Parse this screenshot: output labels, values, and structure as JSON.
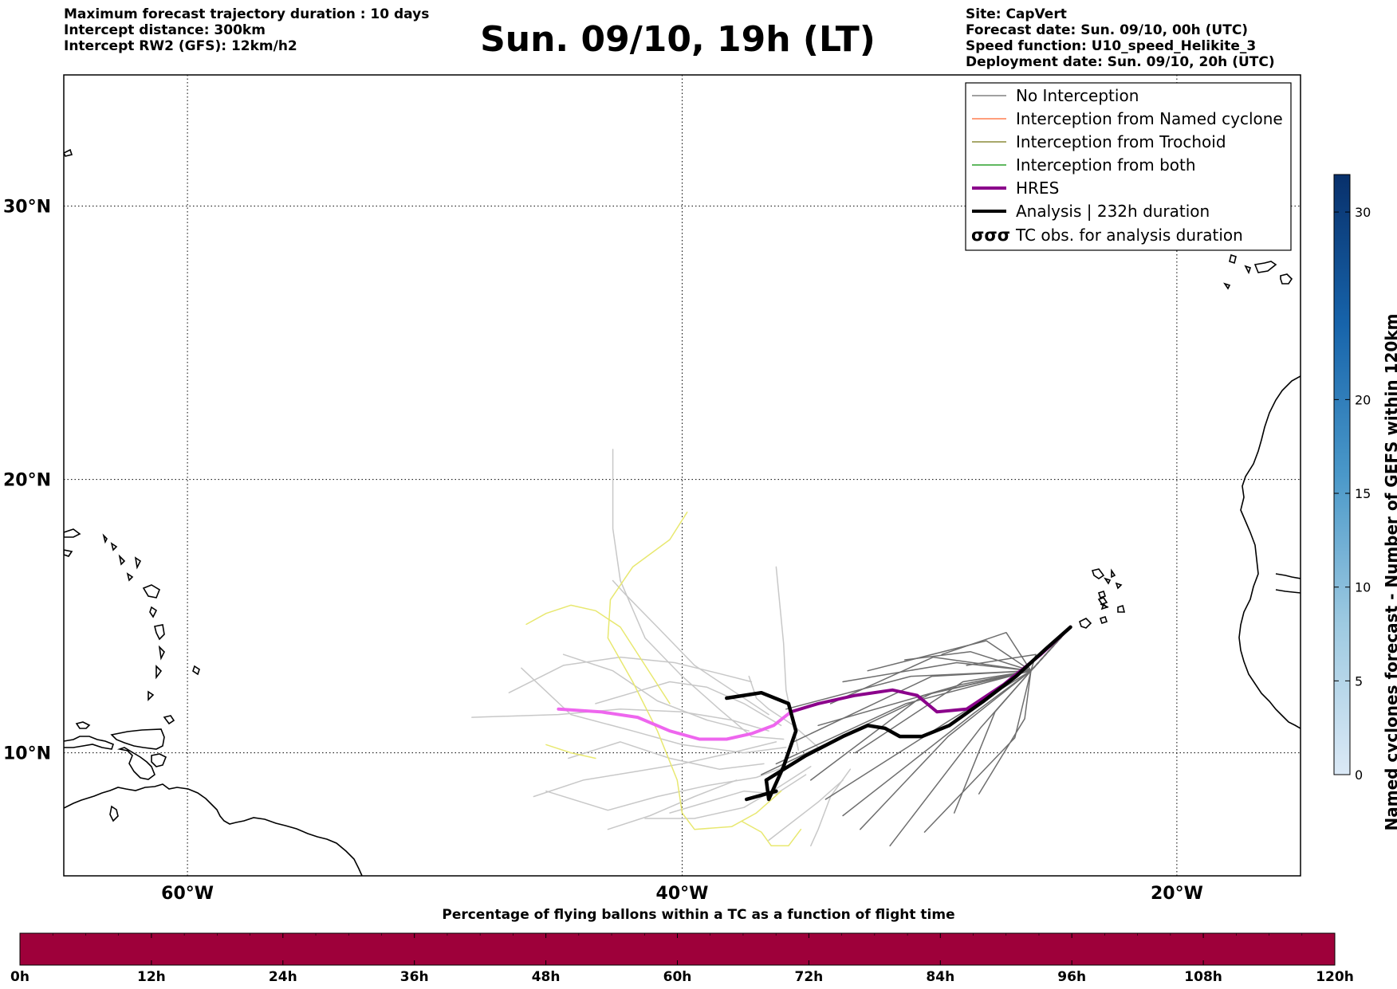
{
  "header_left": [
    "Maximum forecast trajectory duration : 10 days",
    "Intercept distance: 300km",
    "Intercept RW2 (GFS):  12km/h2"
  ],
  "header_right": [
    "Site: CapVert",
    "Forecast date: Sun. 09/10, 00h (UTC)",
    "Speed function: U10_speed_Helikite_3",
    "Deployment date: Sun. 09/10, 20h (UTC)"
  ],
  "title": "Sun. 09/10, 19h (LT)",
  "map": {
    "lon_range": [
      -65,
      -15
    ],
    "lat_range": [
      5.5,
      34.8
    ],
    "x_ticks": [
      {
        "lon": -60,
        "label": "60°W"
      },
      {
        "lon": -40,
        "label": "40°W"
      },
      {
        "lon": -20,
        "label": "20°W"
      }
    ],
    "y_ticks": [
      {
        "lat": 30,
        "label": "30°N"
      },
      {
        "lat": 20,
        "label": "20°N"
      },
      {
        "lat": 10,
        "label": "10°N"
      }
    ],
    "grid": true,
    "colors": {
      "no_interception": "#6e6e6e",
      "no_interception_light": "#c8c8c8",
      "named_cyclone": "#ff7f50",
      "trochoid": "#8b8b3a",
      "both": "#2ca02c",
      "hres": "#8b008b",
      "hres_light": "#ee66ee",
      "analysis": "#000000",
      "yellow_members": "#e8e870"
    }
  },
  "legend": {
    "placement": "top-right",
    "items": [
      {
        "label": "No Interception",
        "icon": "thin-gray-line"
      },
      {
        "label": "Interception from Named cyclone",
        "icon": "thin-orange-line"
      },
      {
        "label": "Interception from Trochoid",
        "icon": "thin-olive-line"
      },
      {
        "label": "Interception from both",
        "icon": "thin-green-line"
      },
      {
        "label": "HRES",
        "icon": "thick-purple-line"
      },
      {
        "label": "Analysis | 232h duration",
        "icon": "thick-black-line"
      },
      {
        "label": "TC obs. for analysis duration",
        "icon": "tc-symbols",
        "symbols": "σσσ"
      }
    ]
  },
  "colorbar_right": {
    "title": "Named cyclones forecast - Number of GEFS within 120km",
    "min": 0,
    "max": 32,
    "ticks": [
      "0",
      "5",
      "10",
      "15",
      "20",
      "30"
    ],
    "colormap": "Blues"
  },
  "colorbar_bottom": {
    "title": "Percentage of flying ballons within a TC as a function of flight time",
    "ticks": [
      "0h",
      "12h",
      "24h",
      "36h",
      "48h",
      "60h",
      "72h",
      "84h",
      "96h",
      "108h",
      "120h"
    ],
    "fill_color": "#9e003a"
  },
  "chart_data": {
    "type": "line",
    "hres": [
      [
        -24.3,
        14.6
      ],
      [
        -25.5,
        13.6
      ],
      [
        -27,
        12.5
      ],
      [
        -28.5,
        11.6
      ],
      [
        -29.7,
        11.5
      ],
      [
        -30.5,
        12.1
      ],
      [
        -31.5,
        12.3
      ],
      [
        -33,
        12.1
      ],
      [
        -34.5,
        11.8
      ],
      [
        -35.6,
        11.5
      ],
      [
        -36.3,
        11.0
      ],
      [
        -37.2,
        10.7
      ],
      [
        -38.2,
        10.5
      ],
      [
        -39.3,
        10.5
      ],
      [
        -40.5,
        10.8
      ],
      [
        -41.8,
        11.3
      ],
      [
        -43.3,
        11.5
      ],
      [
        -45,
        11.6
      ]
    ],
    "hres_light_from_lon": -35.6,
    "analysis": [
      [
        -24.3,
        14.6
      ],
      [
        -25.3,
        13.8
      ],
      [
        -26.5,
        12.8
      ],
      [
        -27.8,
        11.9
      ],
      [
        -29.2,
        11.0
      ],
      [
        -30.3,
        10.6
      ],
      [
        -31.2,
        10.6
      ],
      [
        -31.8,
        10.9
      ],
      [
        -32.5,
        11.0
      ],
      [
        -33.5,
        10.6
      ],
      [
        -35,
        9.9
      ],
      [
        -36.6,
        9.0
      ],
      [
        -36.5,
        8.3
      ],
      [
        -35.9,
        9.5
      ],
      [
        -35.4,
        10.8
      ],
      [
        -35.7,
        11.8
      ],
      [
        -36.8,
        12.2
      ],
      [
        -37.5,
        12.1
      ],
      [
        -38.2,
        12.0
      ]
    ],
    "analysis_joined_at": [
      -36.2,
      8.6
    ],
    "analysis_start_tail": [
      [
        -36.2,
        8.6
      ],
      [
        -37.4,
        8.3
      ]
    ]
  }
}
